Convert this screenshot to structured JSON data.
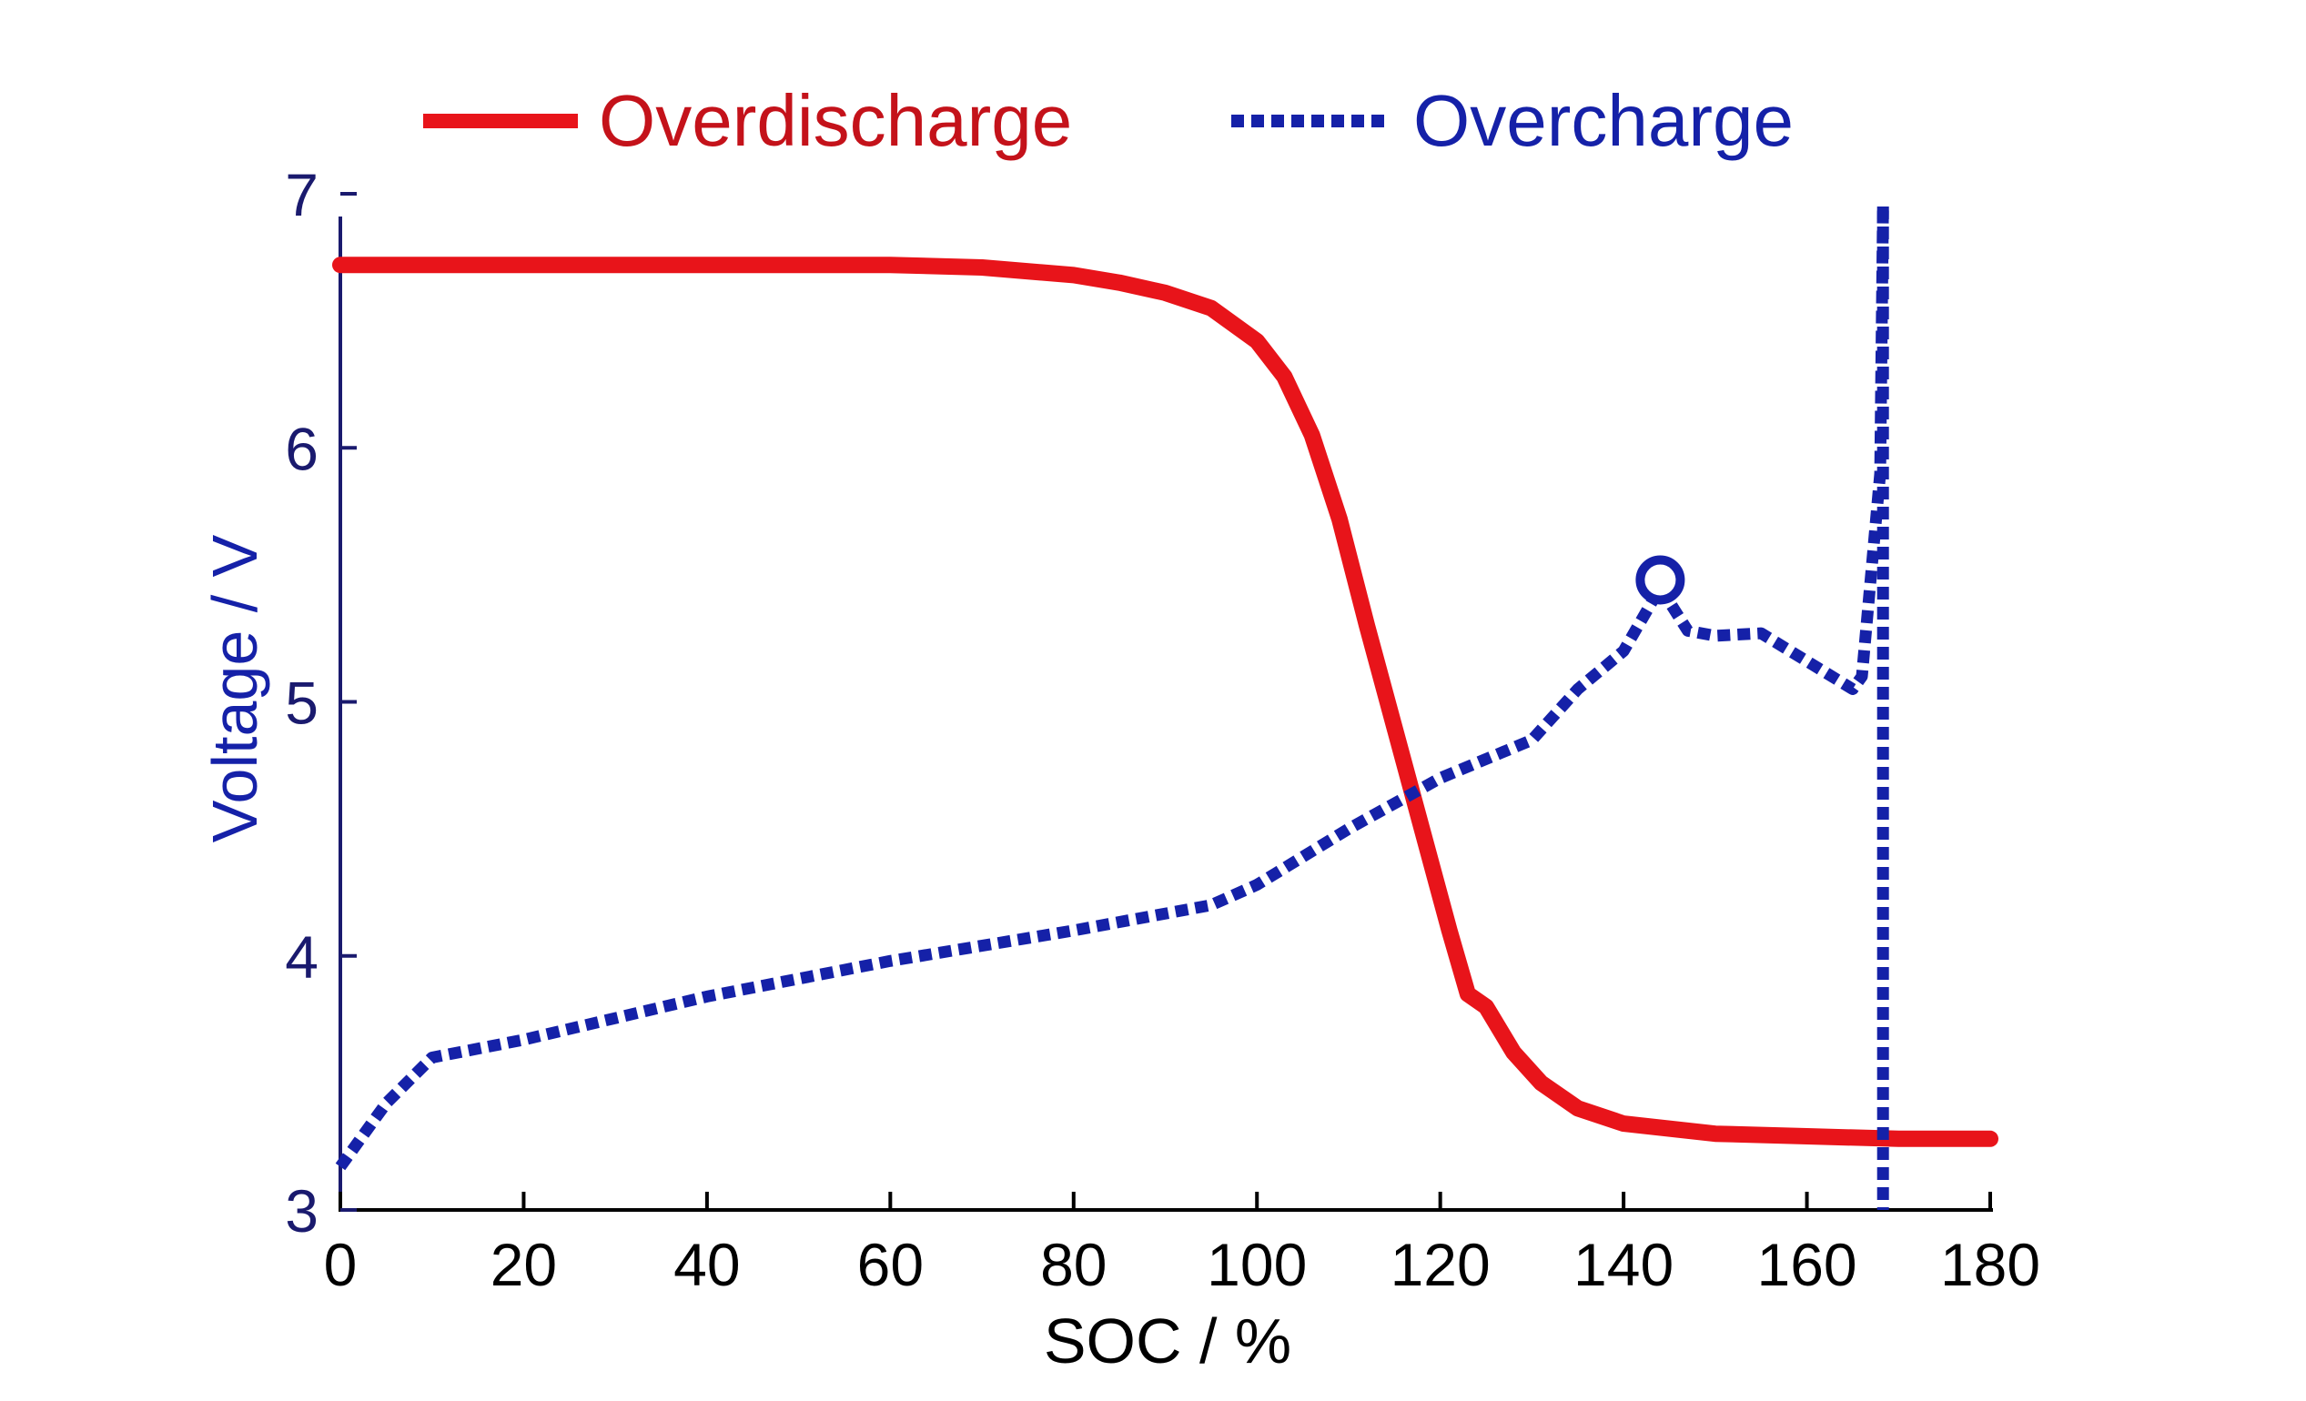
{
  "chart_data": {
    "type": "line",
    "title": "",
    "xlabel": "SOC / %",
    "ylabel": "Voltage / V",
    "xlim": [
      0,
      180
    ],
    "ylim": [
      3,
      7
    ],
    "xticks": [
      0,
      20,
      40,
      60,
      80,
      100,
      120,
      140,
      160,
      180
    ],
    "yticks": [
      3,
      4,
      5,
      6,
      7
    ],
    "grid": false,
    "legend_position": "top",
    "colors": {
      "overdischarge": "#e8141a",
      "overcharge": "#1521a8",
      "y_axis": "#1a1a6e",
      "x_axis": "#000000"
    },
    "series": [
      {
        "name": "Overdischarge",
        "style": "solid",
        "x": [
          0,
          10,
          20,
          30,
          40,
          50,
          60,
          70,
          80,
          85,
          90,
          95,
          100,
          103,
          106,
          109,
          112,
          115,
          118,
          121,
          123,
          125,
          128,
          131,
          135,
          140,
          150,
          160,
          170,
          180
        ],
        "y": [
          6.72,
          6.72,
          6.72,
          6.72,
          6.72,
          6.72,
          6.72,
          6.71,
          6.68,
          6.65,
          6.61,
          6.55,
          6.42,
          6.28,
          6.05,
          5.72,
          5.3,
          4.9,
          4.5,
          4.1,
          3.85,
          3.8,
          3.62,
          3.5,
          3.4,
          3.34,
          3.3,
          3.29,
          3.28,
          3.28
        ]
      },
      {
        "name": "Overcharge",
        "style": "dotted",
        "x": [
          0,
          5,
          10,
          20,
          40,
          60,
          80,
          95,
          100,
          110,
          120,
          130,
          135,
          140,
          144,
          147,
          150,
          155,
          160,
          165,
          166,
          168,
          168.3
        ],
        "y": [
          3.17,
          3.42,
          3.6,
          3.67,
          3.84,
          3.98,
          4.1,
          4.2,
          4.28,
          4.5,
          4.7,
          4.85,
          5.05,
          5.2,
          5.45,
          5.28,
          5.26,
          5.27,
          5.16,
          5.05,
          5.1,
          5.9,
          6.95
        ]
      },
      {
        "name": "Overcharge-drop",
        "style": "dotted",
        "x": [
          168.3,
          168.3
        ],
        "y": [
          6.95,
          3.0
        ]
      }
    ],
    "markers": [
      {
        "x": 144,
        "y": 5.48,
        "shape": "open-circle"
      }
    ]
  }
}
